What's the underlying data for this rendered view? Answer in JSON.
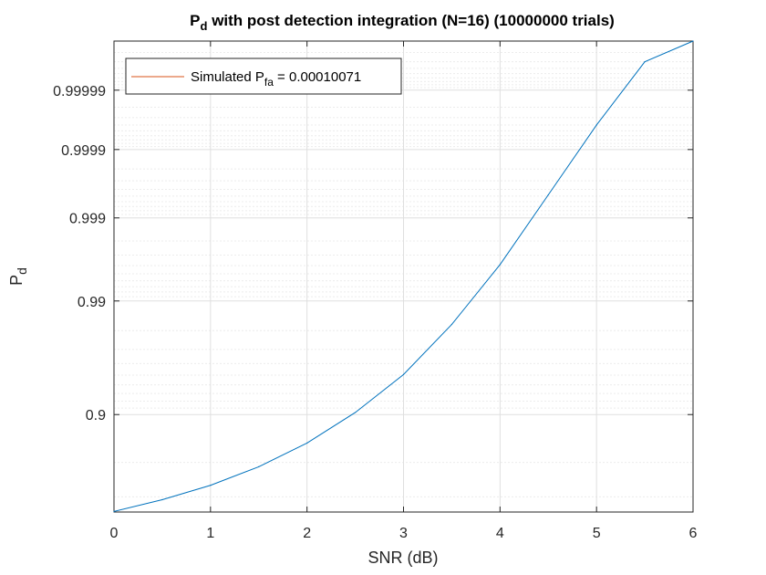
{
  "chart_data": {
    "type": "line",
    "title": {
      "prefix": "P",
      "subscript": "d",
      "rest": " with post detection integration (N=16) (10000000 trials)"
    },
    "xlabel": "SNR (dB)",
    "ylabel": {
      "main": "P",
      "subscript": "d"
    },
    "y_scale": "probit (normal probability)",
    "xlim": [
      0,
      6
    ],
    "ylim": [
      0.65,
      0.9999988
    ],
    "x_ticks": [
      "0",
      "1",
      "2",
      "3",
      "4",
      "5",
      "6"
    ],
    "y_ticks": [
      "0.9",
      "0.99",
      "0.999",
      "0.9999",
      "0.99999"
    ],
    "grid": "on (major and minor)",
    "legend_location": "top-left",
    "legend": {
      "prefix": "Simulated P",
      "subscript": "fa",
      "suffix": " = 0.00010071"
    },
    "series": [
      {
        "name": "Simulated P_fa = 0.00010071",
        "color": "#0072bd",
        "x": [
          0,
          0.5,
          1,
          1.5,
          2,
          2.5,
          3,
          3.5,
          4,
          4.5,
          5,
          5.5,
          6
        ],
        "y": [
          0.652,
          0.691,
          0.736,
          0.7886,
          0.846,
          0.9033,
          0.9505,
          0.9826,
          0.9961,
          0.99952,
          0.99996,
          0.999997,
          0.9999988
        ]
      }
    ],
    "colors": {
      "line": "#0072bd",
      "legend_line": "#d95319",
      "axes": "#262626",
      "grid_major": "#dfdfdf",
      "grid_minor": "#ececec"
    }
  }
}
